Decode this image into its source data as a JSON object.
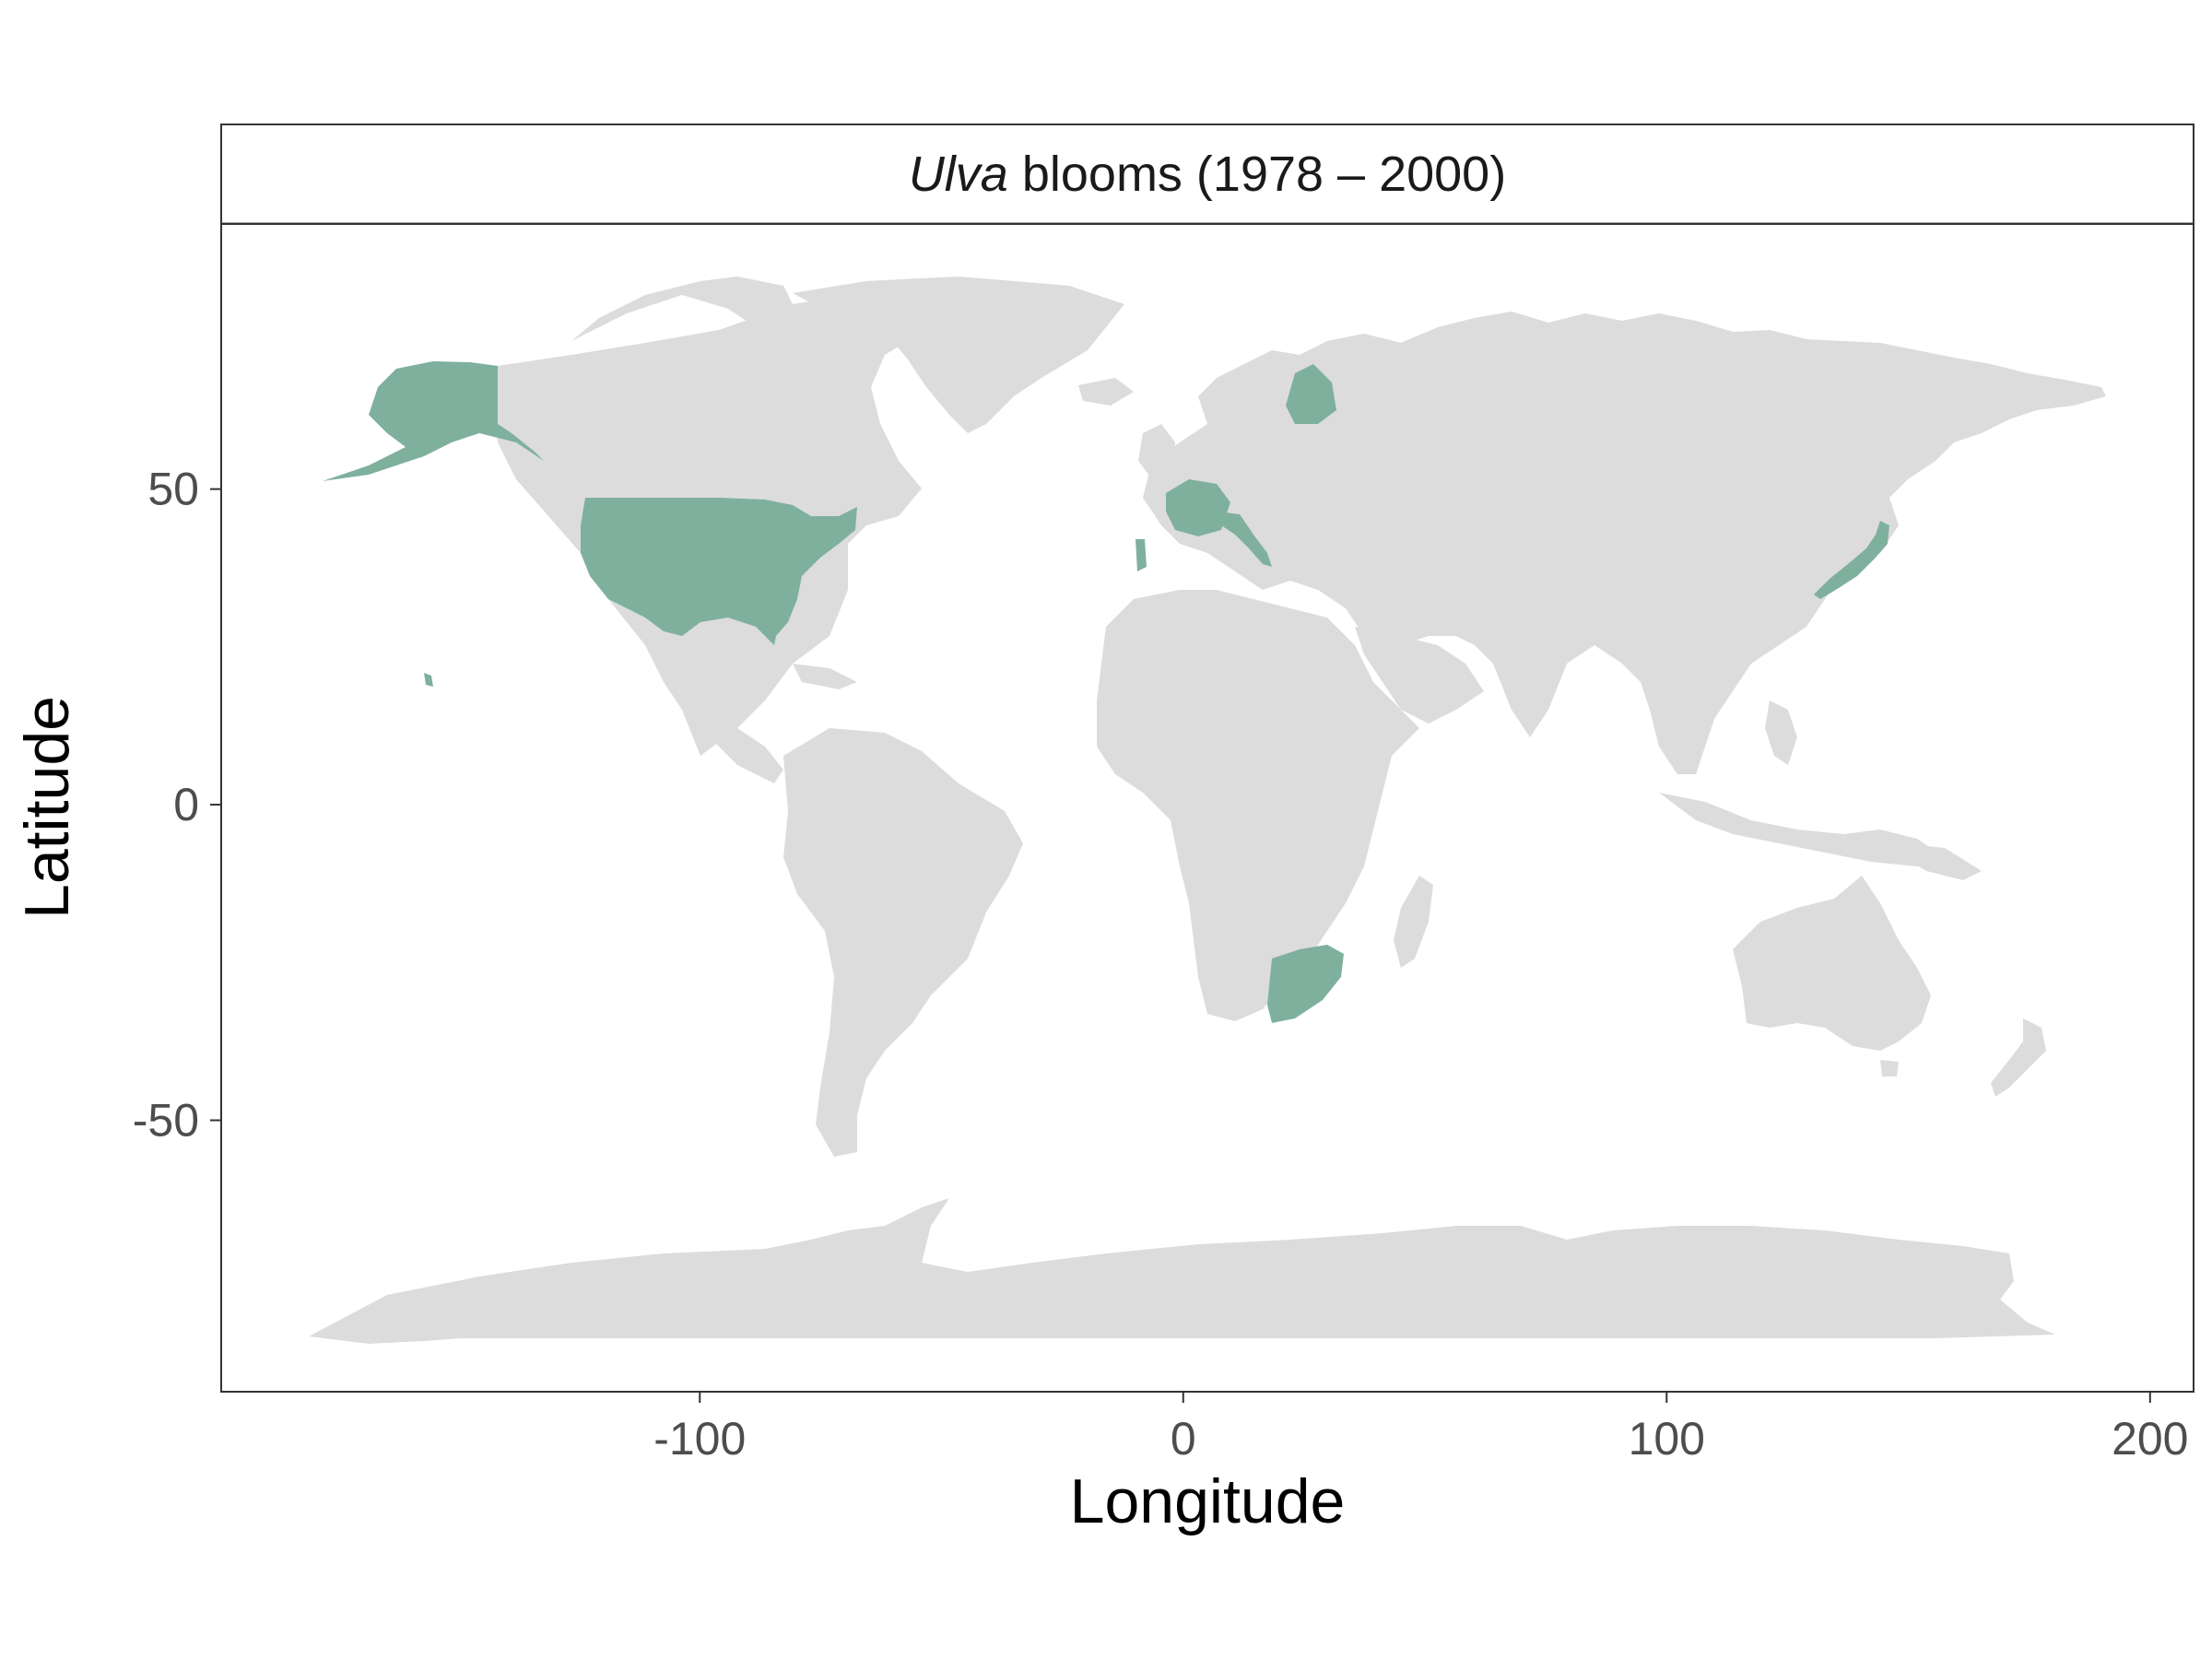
{
  "strip": {
    "title_italic": "Ulva",
    "title_rest": " blooms (1978 – 2000)"
  },
  "axes": {
    "xlabel": "Longitude",
    "ylabel": "Latitude",
    "x_ticks": [
      -100,
      0,
      100,
      200
    ],
    "y_ticks": [
      50,
      0,
      -50
    ],
    "x_tick_labels": [
      "-100",
      "0",
      "100",
      "200"
    ],
    "y_tick_labels": [
      "50",
      "0",
      "-50"
    ],
    "xlim": [
      -199,
      209
    ],
    "ylim": [
      -93,
      92
    ]
  },
  "colors": {
    "land": "#dcdcdc",
    "highlight": "#7fb09e",
    "panel_border": "#333333",
    "tick_text": "#4d4d4d"
  },
  "map": {
    "highlighted_regions": [
      "Alaska",
      "United States",
      "Hawaii",
      "France",
      "Italy",
      "Portugal",
      "Finland",
      "South Africa",
      "Japan"
    ]
  }
}
